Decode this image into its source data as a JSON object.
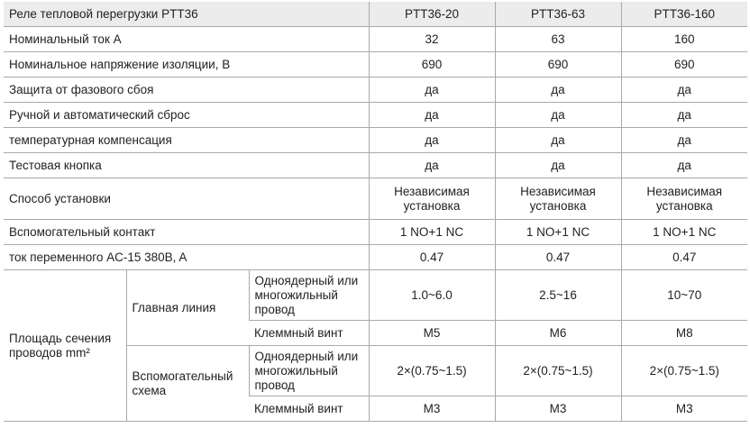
{
  "table": {
    "title": "Реле тепловой перегрузки PTT36",
    "models": [
      "PTT36-20",
      "PTT36-63",
      "PTT36-160"
    ],
    "rows": [
      {
        "label": "Номинальный ток A",
        "values": [
          "32",
          "63",
          "160"
        ]
      },
      {
        "label": "Номинальное напряжение изоляции, В",
        "values": [
          "690",
          "690",
          "690"
        ]
      },
      {
        "label": "Защита от фазового сбоя",
        "values": [
          "да",
          "да",
          "да"
        ]
      },
      {
        "label": "Ручной и автоматический сброс",
        "values": [
          "да",
          "да",
          "да"
        ]
      },
      {
        "label": "температурная компенсация",
        "values": [
          "да",
          "да",
          "да"
        ]
      },
      {
        "label": "Тестовая кнопка",
        "values": [
          "да",
          "да",
          "да"
        ]
      },
      {
        "label": "Способ установки",
        "values": [
          "Независимая установка",
          "Независимая установка",
          "Независимая установка"
        ]
      },
      {
        "label": "Вспомогательный контакт",
        "values": [
          "1 NO+1 NC",
          "1 NO+1 NC",
          "1 NO+1 NC"
        ]
      },
      {
        "label": "ток переменного AC-15 380B, A",
        "values": [
          "0.47",
          "0.47",
          "0.47"
        ]
      }
    ],
    "cross_section": {
      "label": "Площадь сечения проводов mm²",
      "groups": [
        {
          "label": "Главная линия",
          "rows": [
            {
              "label": "Одноядерный или многожильный провод",
              "values": [
                "1.0~6.0",
                "2.5~16",
                "10~70"
              ]
            },
            {
              "label": "Клеммный винт",
              "values": [
                "M5",
                "M6",
                "M8"
              ]
            }
          ]
        },
        {
          "label": "Вспомогательный схема",
          "rows": [
            {
              "label": "Одноядерный или многожильный провод",
              "values": [
                "2×(0.75~1.5)",
                "2×(0.75~1.5)",
                "2×(0.75~1.5)"
              ]
            },
            {
              "label": "Клеммный винт",
              "values": [
                "M3",
                "M3",
                "M3"
              ]
            }
          ]
        }
      ]
    }
  }
}
